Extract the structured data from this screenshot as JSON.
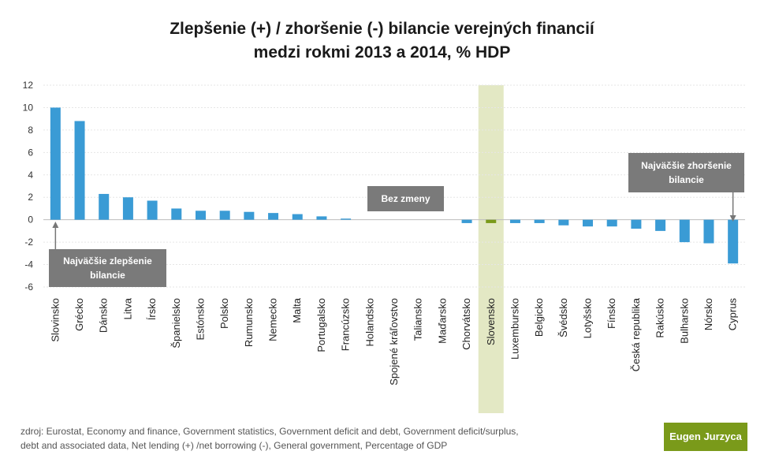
{
  "title": {
    "line1": "Zlepšenie (+) / zhoršenie (-) bilancie verejných financií",
    "line2": "medzi rokmi 2013 a 2014, % HDP"
  },
  "annotations": {
    "best": "Najväčšie zlepšenie bilancie",
    "none": "Bez zmeny",
    "worst": "Najväčšie zhoršenie bilancie"
  },
  "source": {
    "line1": "zdroj: Eurostat, Economy and finance, Government statistics, Government deficit and debt, Government deficit/surplus,",
    "line2": "debt and associated data, Net lending (+) /net borrowing (-), General government, Percentage of GDP"
  },
  "brand": "Eugen Jurzyca",
  "colors": {
    "bar": "#3a9bd5",
    "highlight_bar": "#7a9a1a",
    "highlight_band": "#e3e8c4",
    "callout": "#7a7a7a",
    "brand": "#7a9a1a"
  },
  "chart_data": {
    "type": "bar",
    "categories": [
      "Slovinsko",
      "Grécko",
      "Dánsko",
      "Litva",
      "Írsko",
      "Španielsko",
      "Estónsko",
      "Polsko",
      "Rumunsko",
      "Nemecko",
      "Malta",
      "Portugalsko",
      "Francúzsko",
      "Holandsko",
      "Spojené kráľovstvo",
      "Taliansko",
      "Maďarsko",
      "Chorvátsko",
      "Slovensko",
      "Luxembursko",
      "Belgicko",
      "Švédsko",
      "Lotyšsko",
      "Fínsko",
      "Česká republika",
      "Rakúsko",
      "Bulharsko",
      "Nórsko",
      "Cyprus"
    ],
    "values": [
      10.0,
      8.8,
      2.3,
      2.0,
      1.7,
      1.0,
      0.8,
      0.8,
      0.7,
      0.6,
      0.5,
      0.3,
      0.1,
      0.0,
      0.0,
      0.0,
      0.0,
      -0.3,
      -0.3,
      -0.3,
      -0.3,
      -0.5,
      -0.6,
      -0.6,
      -0.8,
      -1.0,
      -2.0,
      -2.1,
      -3.9
    ],
    "highlight": "Slovensko",
    "ylim": [
      -6,
      12
    ],
    "yticks": [
      -6,
      -4,
      -2,
      0,
      2,
      4,
      6,
      8,
      10,
      12
    ],
    "grid": true,
    "xlabel": "",
    "ylabel": ""
  }
}
